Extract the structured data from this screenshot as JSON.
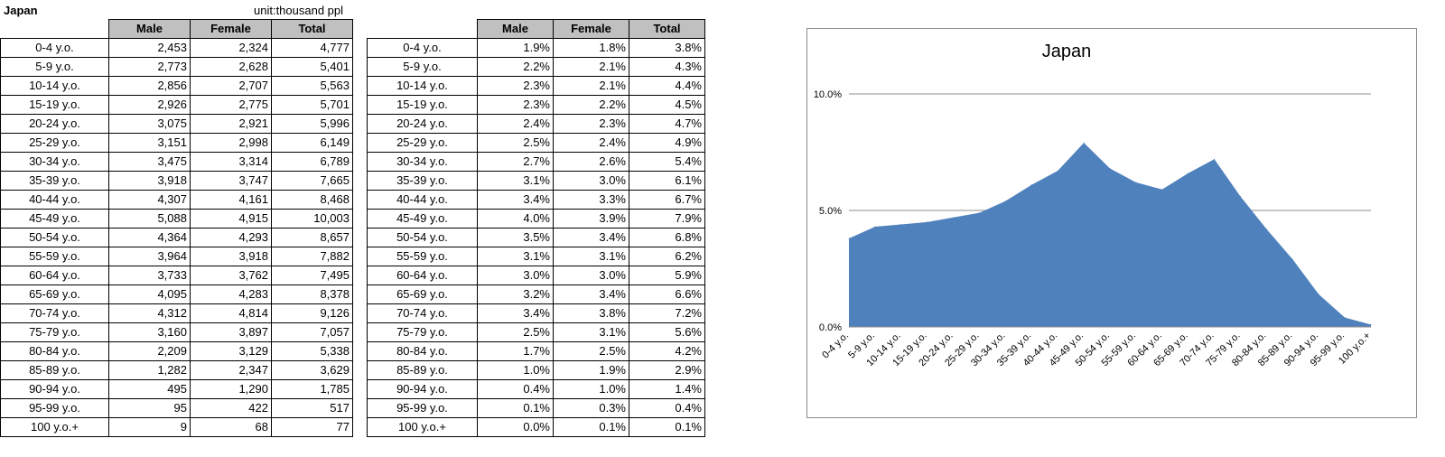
{
  "region": "Japan",
  "unit_note": "unit:thousand ppl",
  "headers": [
    "Male",
    "Female",
    "Total"
  ],
  "rows_abs": [
    [
      "0-4 y.o.",
      "2,453",
      "2,324",
      "4,777"
    ],
    [
      "5-9 y.o.",
      "2,773",
      "2,628",
      "5,401"
    ],
    [
      "10-14 y.o.",
      "2,856",
      "2,707",
      "5,563"
    ],
    [
      "15-19 y.o.",
      "2,926",
      "2,775",
      "5,701"
    ],
    [
      "20-24 y.o.",
      "3,075",
      "2,921",
      "5,996"
    ],
    [
      "25-29 y.o.",
      "3,151",
      "2,998",
      "6,149"
    ],
    [
      "30-34 y.o.",
      "3,475",
      "3,314",
      "6,789"
    ],
    [
      "35-39 y.o.",
      "3,918",
      "3,747",
      "7,665"
    ],
    [
      "40-44 y.o.",
      "4,307",
      "4,161",
      "8,468"
    ],
    [
      "45-49 y.o.",
      "5,088",
      "4,915",
      "10,003"
    ],
    [
      "50-54 y.o.",
      "4,364",
      "4,293",
      "8,657"
    ],
    [
      "55-59 y.o.",
      "3,964",
      "3,918",
      "7,882"
    ],
    [
      "60-64 y.o.",
      "3,733",
      "3,762",
      "7,495"
    ],
    [
      "65-69 y.o.",
      "4,095",
      "4,283",
      "8,378"
    ],
    [
      "70-74 y.o.",
      "4,312",
      "4,814",
      "9,126"
    ],
    [
      "75-79 y.o.",
      "3,160",
      "3,897",
      "7,057"
    ],
    [
      "80-84 y.o.",
      "2,209",
      "3,129",
      "5,338"
    ],
    [
      "85-89 y.o.",
      "1,282",
      "2,347",
      "3,629"
    ],
    [
      "90-94 y.o.",
      "495",
      "1,290",
      "1,785"
    ],
    [
      "95-99 y.o.",
      "95",
      "422",
      "517"
    ],
    [
      "100 y.o.+",
      "9",
      "68",
      "77"
    ]
  ],
  "rows_pct": [
    [
      "0-4 y.o.",
      "1.9%",
      "1.8%",
      "3.8%"
    ],
    [
      "5-9 y.o.",
      "2.2%",
      "2.1%",
      "4.3%"
    ],
    [
      "10-14 y.o.",
      "2.3%",
      "2.1%",
      "4.4%"
    ],
    [
      "15-19 y.o.",
      "2.3%",
      "2.2%",
      "4.5%"
    ],
    [
      "20-24 y.o.",
      "2.4%",
      "2.3%",
      "4.7%"
    ],
    [
      "25-29 y.o.",
      "2.5%",
      "2.4%",
      "4.9%"
    ],
    [
      "30-34 y.o.",
      "2.7%",
      "2.6%",
      "5.4%"
    ],
    [
      "35-39 y.o.",
      "3.1%",
      "3.0%",
      "6.1%"
    ],
    [
      "40-44 y.o.",
      "3.4%",
      "3.3%",
      "6.7%"
    ],
    [
      "45-49 y.o.",
      "4.0%",
      "3.9%",
      "7.9%"
    ],
    [
      "50-54 y.o.",
      "3.5%",
      "3.4%",
      "6.8%"
    ],
    [
      "55-59 y.o.",
      "3.1%",
      "3.1%",
      "6.2%"
    ],
    [
      "60-64 y.o.",
      "3.0%",
      "3.0%",
      "5.9%"
    ],
    [
      "65-69 y.o.",
      "3.2%",
      "3.4%",
      "6.6%"
    ],
    [
      "70-74 y.o.",
      "3.4%",
      "3.8%",
      "7.2%"
    ],
    [
      "75-79 y.o.",
      "2.5%",
      "3.1%",
      "5.6%"
    ],
    [
      "80-84 y.o.",
      "1.7%",
      "2.5%",
      "4.2%"
    ],
    [
      "85-89 y.o.",
      "1.0%",
      "1.9%",
      "2.9%"
    ],
    [
      "90-94 y.o.",
      "0.4%",
      "1.0%",
      "1.4%"
    ],
    [
      "95-99 y.o.",
      "0.1%",
      "0.3%",
      "0.4%"
    ],
    [
      "100 y.o.+",
      "0.0%",
      "0.1%",
      "0.1%"
    ]
  ],
  "chart_data": {
    "type": "area",
    "title": "Japan",
    "xlabel": "",
    "ylabel": "",
    "categories": [
      "0-4 y.o.",
      "5-9 y.o.",
      "10-14 y.o.",
      "15-19 y.o.",
      "20-24 y.o.",
      "25-29 y.o.",
      "30-34 y.o.",
      "35-39 y.o.",
      "40-44 y.o.",
      "45-49 y.o.",
      "50-54 y.o.",
      "55-59 y.o.",
      "60-64 y.o.",
      "65-69 y.o.",
      "70-74 y.o.",
      "75-79 y.o.",
      "80-84 y.o.",
      "85-89 y.o.",
      "90-94 y.o.",
      "95-99 y.o.",
      "100 y.o.+"
    ],
    "series": [
      {
        "name": "Total",
        "values": [
          3.8,
          4.3,
          4.4,
          4.5,
          4.7,
          4.9,
          5.4,
          6.1,
          6.7,
          7.9,
          6.8,
          6.2,
          5.9,
          6.6,
          7.2,
          5.6,
          4.2,
          2.9,
          1.4,
          0.4,
          0.1
        ]
      }
    ],
    "ylim": [
      0,
      10
    ],
    "yticks": [
      0,
      5,
      10
    ],
    "ytick_labels": [
      "0.0%",
      "5.0%",
      "10.0%"
    ],
    "grid": true,
    "fill_color": "#4f81bd",
    "legend": "none"
  }
}
